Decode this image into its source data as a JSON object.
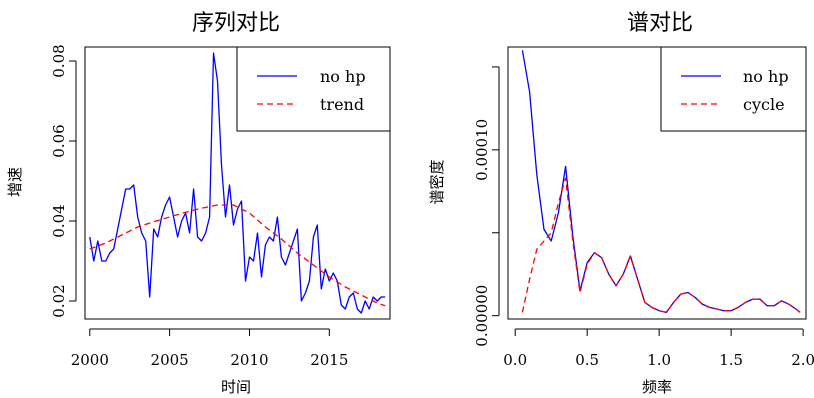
{
  "chart_data": [
    {
      "type": "line",
      "title": "序列对比",
      "xlabel": "时间",
      "ylabel": "增速",
      "xlim": [
        1999.7,
        2018.8
      ],
      "ylim": [
        0.0155,
        0.0835
      ],
      "x_ticks": [
        2000,
        2005,
        2010,
        2015
      ],
      "x_tick_labels": [
        "2000",
        "2005",
        "2010",
        "2015"
      ],
      "y_ticks": [
        0.02,
        0.04,
        0.06,
        0.08
      ],
      "y_tick_labels": [
        "0.02",
        "0.04",
        "0.06",
        "0.08"
      ],
      "legend_position": "top-right",
      "series": [
        {
          "name": "no hp",
          "color": "#0000ff",
          "style": "solid",
          "x": [
            2000.0,
            2000.25,
            2000.5,
            2000.75,
            2001.0,
            2001.25,
            2001.5,
            2001.75,
            2002.0,
            2002.25,
            2002.5,
            2002.75,
            2003.0,
            2003.25,
            2003.5,
            2003.75,
            2004.0,
            2004.25,
            2004.5,
            2004.75,
            2005.0,
            2005.25,
            2005.5,
            2005.75,
            2006.0,
            2006.25,
            2006.5,
            2006.75,
            2007.0,
            2007.25,
            2007.5,
            2007.75,
            2008.0,
            2008.25,
            2008.5,
            2008.75,
            2009.0,
            2009.25,
            2009.5,
            2009.75,
            2010.0,
            2010.25,
            2010.5,
            2010.75,
            2011.0,
            2011.25,
            2011.5,
            2011.75,
            2012.0,
            2012.25,
            2012.5,
            2012.75,
            2013.0,
            2013.25,
            2013.5,
            2013.75,
            2014.0,
            2014.25,
            2014.5,
            2014.75,
            2015.0,
            2015.25,
            2015.5,
            2015.75,
            2016.0,
            2016.25,
            2016.5,
            2016.75,
            2017.0,
            2017.25,
            2017.5,
            2017.75,
            2018.0,
            2018.25,
            2018.5
          ],
          "y": [
            0.036,
            0.03,
            0.035,
            0.03,
            0.03,
            0.032,
            0.033,
            0.038,
            0.043,
            0.048,
            0.048,
            0.049,
            0.041,
            0.037,
            0.035,
            0.021,
            0.038,
            0.036,
            0.041,
            0.044,
            0.046,
            0.041,
            0.036,
            0.04,
            0.042,
            0.037,
            0.048,
            0.036,
            0.035,
            0.037,
            0.041,
            0.082,
            0.075,
            0.054,
            0.041,
            0.049,
            0.039,
            0.043,
            0.045,
            0.025,
            0.031,
            0.03,
            0.037,
            0.026,
            0.034,
            0.036,
            0.035,
            0.041,
            0.031,
            0.029,
            0.032,
            0.035,
            0.038,
            0.02,
            0.022,
            0.025,
            0.036,
            0.039,
            0.023,
            0.028,
            0.025,
            0.027,
            0.025,
            0.019,
            0.018,
            0.021,
            0.022,
            0.018,
            0.017,
            0.02,
            0.018,
            0.021,
            0.02,
            0.021,
            0.021
          ]
        },
        {
          "name": "trend",
          "color": "#ff0000",
          "style": "dashed",
          "x": [
            2000,
            2001,
            2002,
            2003,
            2004,
            2005,
            2006,
            2007,
            2008,
            2009,
            2010,
            2011,
            2012,
            2013,
            2014,
            2015,
            2016,
            2017,
            2018,
            2018.5
          ],
          "y": [
            0.033,
            0.0345,
            0.0365,
            0.0385,
            0.0398,
            0.041,
            0.0422,
            0.0432,
            0.044,
            0.044,
            0.042,
            0.0385,
            0.0355,
            0.032,
            0.029,
            0.026,
            0.0235,
            0.0215,
            0.0195,
            0.0188
          ]
        }
      ]
    },
    {
      "type": "line",
      "title": "谱对比",
      "xlabel": "频率",
      "ylabel": "谱密度",
      "xlim": [
        -0.05,
        2.02
      ],
      "ylim": [
        -2e-06,
        0.000162
      ],
      "x_ticks": [
        0.0,
        0.5,
        1.0,
        1.5,
        2.0
      ],
      "x_tick_labels": [
        "0.0",
        "0.5",
        "1.0",
        "1.5",
        "2.0"
      ],
      "y_ticks": [
        0.0,
        5e-05,
        0.0001,
        0.00015
      ],
      "y_tick_labels": [
        "0.00000",
        "",
        "0.00010",
        ""
      ],
      "legend_position": "top-right",
      "series": [
        {
          "name": "no hp",
          "color": "#0000ff",
          "style": "solid",
          "x": [
            0.05,
            0.1,
            0.15,
            0.2,
            0.25,
            0.3,
            0.35,
            0.4,
            0.45,
            0.5,
            0.55,
            0.6,
            0.65,
            0.7,
            0.75,
            0.8,
            0.85,
            0.9,
            0.95,
            1.0,
            1.05,
            1.1,
            1.15,
            1.2,
            1.25,
            1.3,
            1.35,
            1.4,
            1.45,
            1.5,
            1.55,
            1.6,
            1.65,
            1.7,
            1.75,
            1.8,
            1.85,
            1.9,
            1.95,
            1.98
          ],
          "y": [
            0.00016,
            0.000135,
            8.5e-05,
            5.2e-05,
            4.5e-05,
            6.2e-05,
            9e-05,
            4.8e-05,
            1.5e-05,
            3.2e-05,
            3.8e-05,
            3.5e-05,
            2.5e-05,
            1.8e-05,
            2.5e-05,
            3.6e-05,
            2.2e-05,
            8e-06,
            5e-06,
            3e-06,
            2e-06,
            8e-06,
            1.3e-05,
            1.4e-05,
            1.1e-05,
            7e-06,
            5e-06,
            4e-06,
            3e-06,
            3e-06,
            5e-06,
            8e-06,
            1e-05,
            1e-05,
            6e-06,
            6e-06,
            9e-06,
            7e-06,
            4e-06,
            2e-06
          ]
        },
        {
          "name": "cycle",
          "color": "#ff0000",
          "style": "dashed",
          "x": [
            0.05,
            0.1,
            0.15,
            0.2,
            0.25,
            0.3,
            0.35,
            0.4,
            0.45,
            0.5,
            0.55,
            0.6,
            0.65,
            0.7,
            0.75,
            0.8,
            0.85,
            0.9,
            0.95,
            1.0,
            1.05,
            1.1,
            1.15,
            1.2,
            1.25,
            1.3,
            1.35,
            1.4,
            1.45,
            1.5,
            1.55,
            1.6,
            1.65,
            1.7,
            1.75,
            1.8,
            1.85,
            1.9,
            1.95,
            1.98
          ],
          "y": [
            2e-06,
            2.2e-05,
            4e-05,
            4.5e-05,
            5e-05,
            6.8e-05,
            8.3e-05,
            4.5e-05,
            1.4e-05,
            3.1e-05,
            3.8e-05,
            3.5e-05,
            2.5e-05,
            1.8e-05,
            2.5e-05,
            3.6e-05,
            2.2e-05,
            8e-06,
            5e-06,
            3e-06,
            2e-06,
            8e-06,
            1.3e-05,
            1.4e-05,
            1.1e-05,
            7e-06,
            5e-06,
            4e-06,
            3e-06,
            3e-06,
            5e-06,
            8e-06,
            1e-05,
            1e-05,
            6e-06,
            6e-06,
            9e-06,
            7e-06,
            4e-06,
            2e-06
          ]
        }
      ]
    }
  ]
}
